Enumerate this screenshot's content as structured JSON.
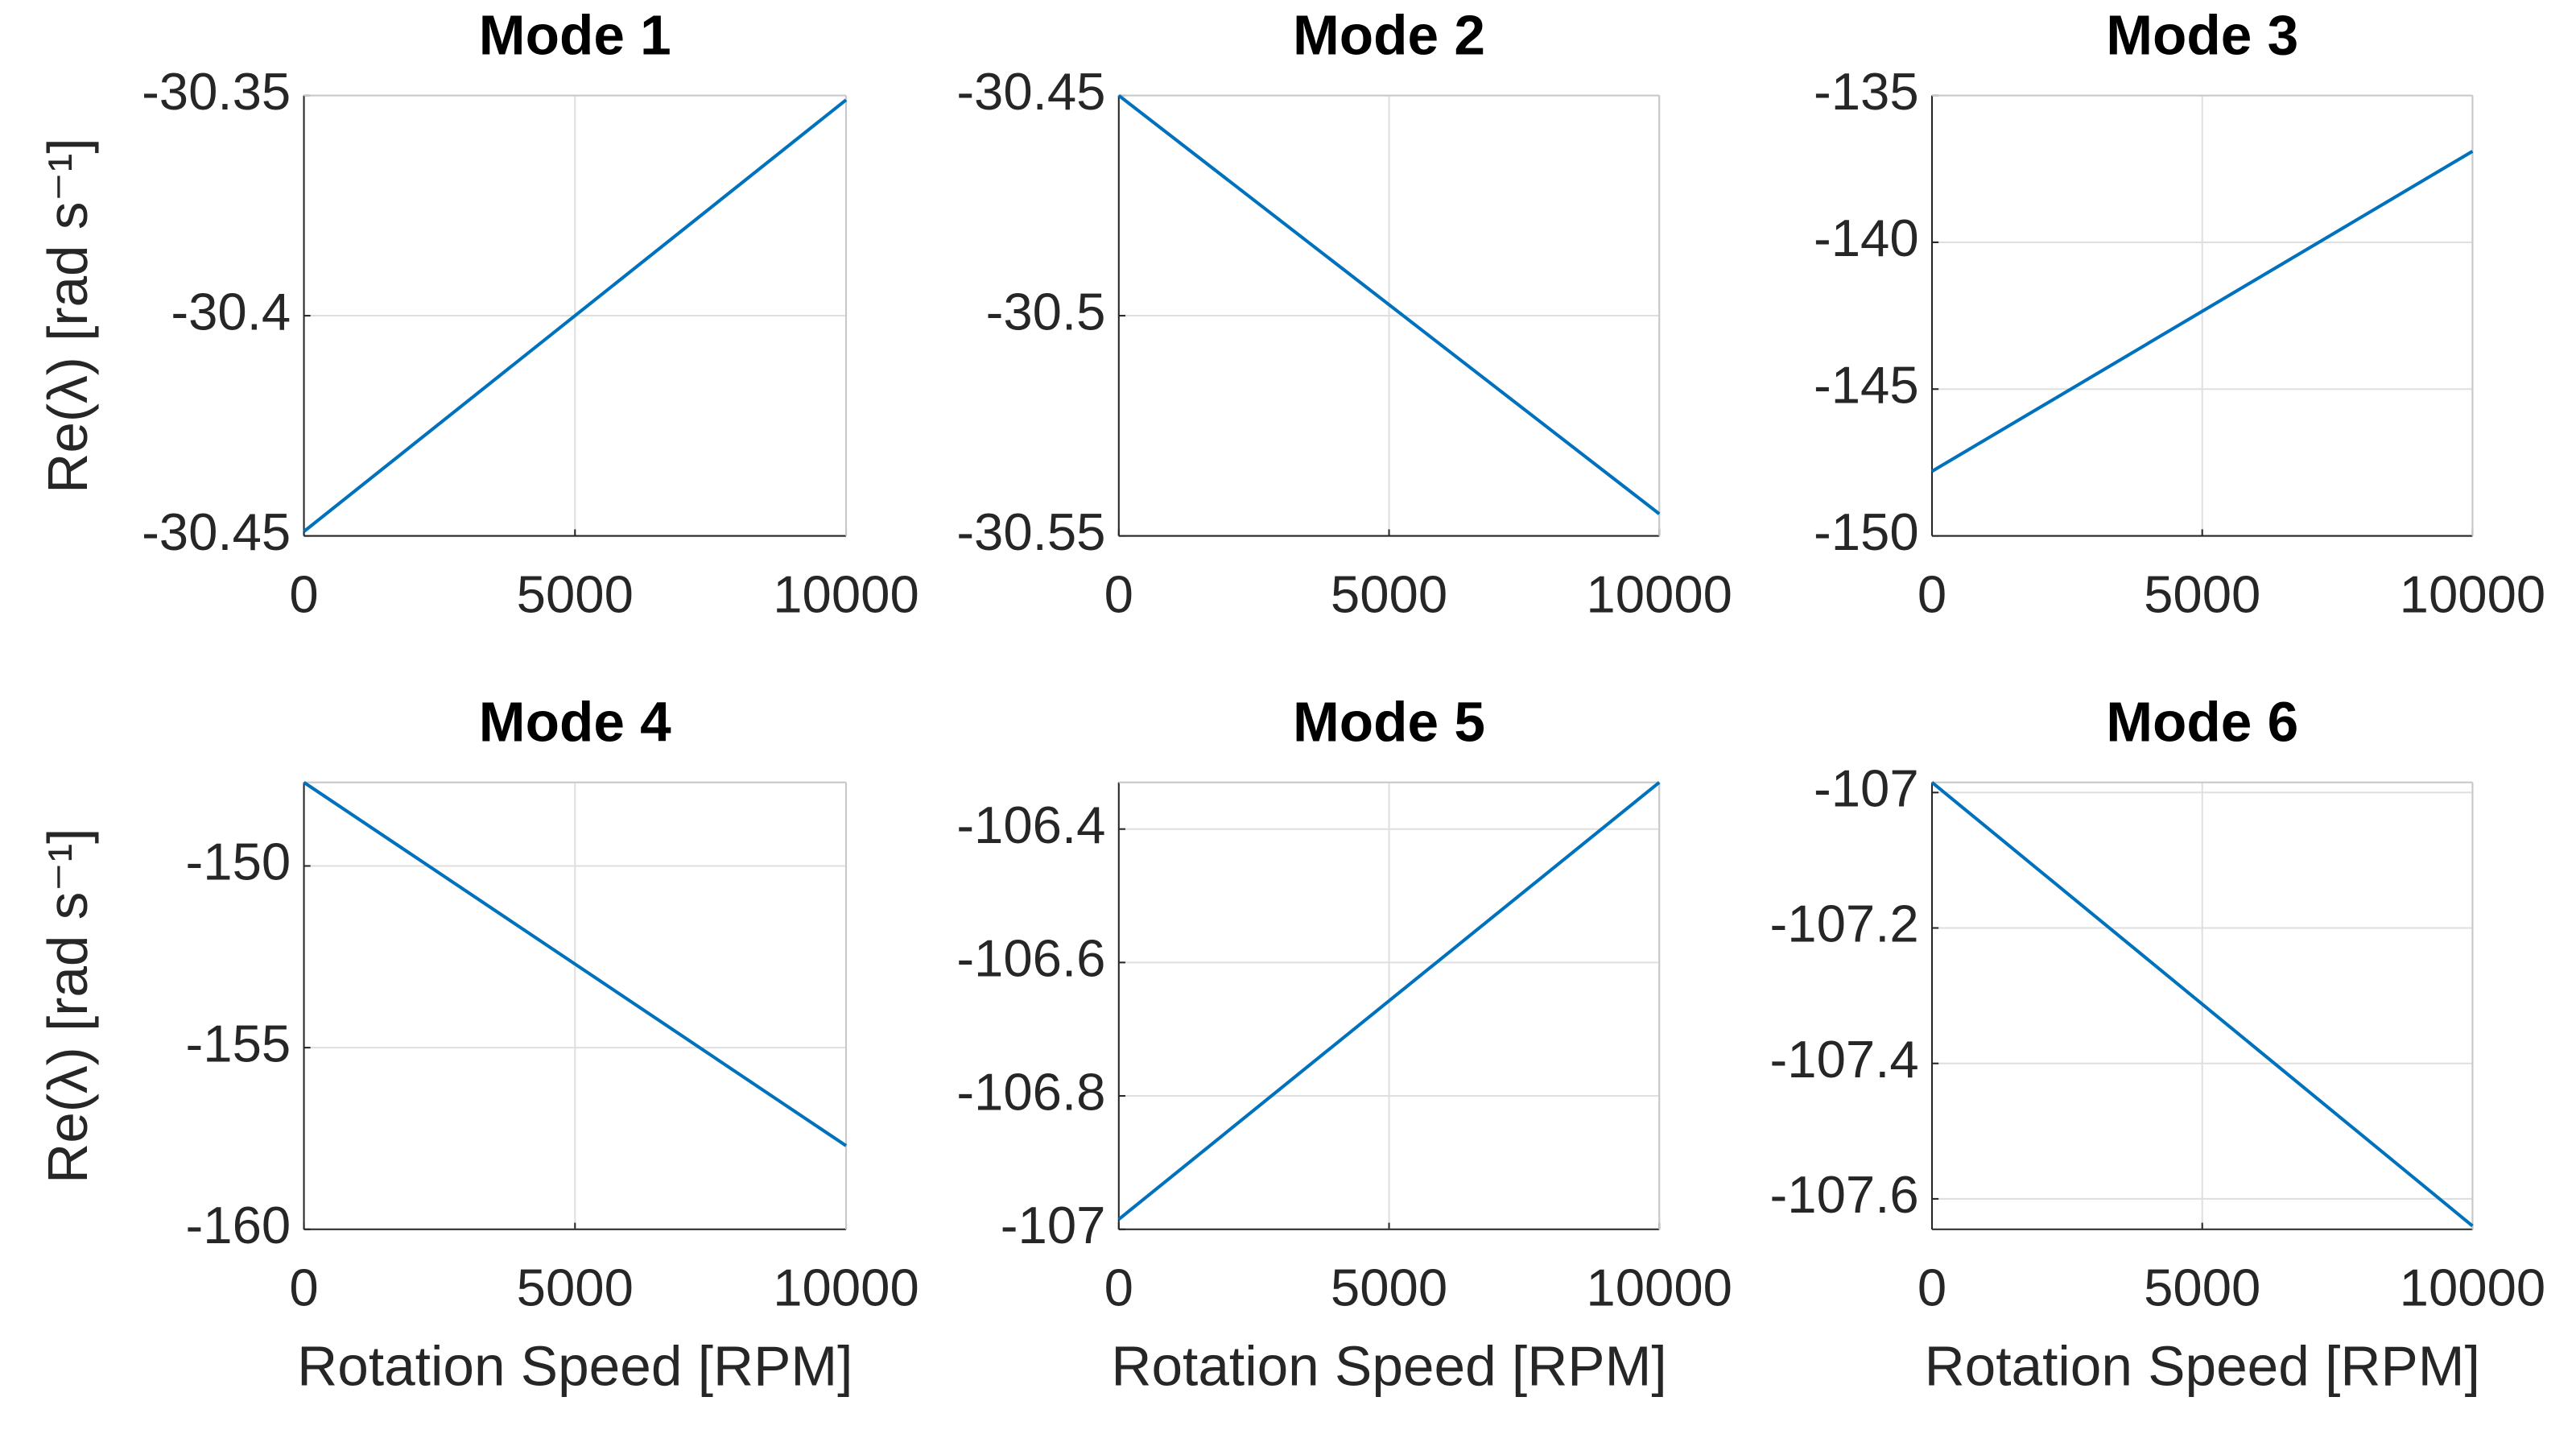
{
  "chart_data": [
    {
      "type": "line",
      "title": "Mode 1",
      "ylabel": "Re(λ) [rad s⁻¹]",
      "x": [
        0,
        10000
      ],
      "series": [
        {
          "color": "#0072bd",
          "values": [
            -30.449,
            -30.351
          ]
        }
      ],
      "xlim": [
        0,
        10000
      ],
      "xticks": [
        0,
        5000,
        10000
      ],
      "ylim": [
        -30.45,
        -30.35
      ],
      "yticks": [
        -30.45,
        -30.4,
        -30.35
      ],
      "grid": true
    },
    {
      "type": "line",
      "title": "Mode 2",
      "x": [
        0,
        10000
      ],
      "series": [
        {
          "color": "#0072bd",
          "values": [
            -30.45,
            -30.545
          ]
        }
      ],
      "xlim": [
        0,
        10000
      ],
      "xticks": [
        0,
        5000,
        10000
      ],
      "ylim": [
        -30.55,
        -30.45
      ],
      "yticks": [
        -30.55,
        -30.5,
        -30.45
      ],
      "grid": true
    },
    {
      "type": "line",
      "title": "Mode 3",
      "x": [
        0,
        10000
      ],
      "series": [
        {
          "color": "#0072bd",
          "values": [
            -147.8,
            -136.9
          ]
        }
      ],
      "xlim": [
        0,
        10000
      ],
      "xticks": [
        0,
        5000,
        10000
      ],
      "ylim": [
        -150,
        -135
      ],
      "yticks": [
        -150,
        -145,
        -140,
        -135
      ],
      "grid": true
    },
    {
      "type": "line",
      "title": "Mode 4",
      "ylabel": "Re(λ) [rad s⁻¹]",
      "xlabel": "Rotation Speed [RPM]",
      "x": [
        0,
        10000
      ],
      "series": [
        {
          "color": "#0072bd",
          "values": [
            -147.7,
            -157.7
          ]
        }
      ],
      "xlim": [
        0,
        10000
      ],
      "xticks": [
        0,
        5000,
        10000
      ],
      "ylim": [
        -160,
        -147.7
      ],
      "yticks": [
        -160,
        -155,
        -150
      ],
      "grid": true
    },
    {
      "type": "line",
      "title": "Mode 5",
      "xlabel": "Rotation Speed [RPM]",
      "x": [
        0,
        10000
      ],
      "series": [
        {
          "color": "#0072bd",
          "values": [
            -106.985,
            -106.33
          ]
        }
      ],
      "xlim": [
        0,
        10000
      ],
      "xticks": [
        0,
        5000,
        10000
      ],
      "ylim": [
        -107,
        -106.33
      ],
      "yticks": [
        -107,
        -106.8,
        -106.6,
        -106.4
      ],
      "grid": true
    },
    {
      "type": "line",
      "title": "Mode 6",
      "xlabel": "Rotation Speed [RPM]",
      "x": [
        0,
        10000
      ],
      "series": [
        {
          "color": "#0072bd",
          "values": [
            -106.985,
            -107.64
          ]
        }
      ],
      "xlim": [
        0,
        10000
      ],
      "xticks": [
        0,
        5000,
        10000
      ],
      "ylim": [
        -107.645,
        -106.985
      ],
      "yticks": [
        -107.6,
        -107.4,
        -107.2,
        -107
      ],
      "grid": true
    }
  ]
}
